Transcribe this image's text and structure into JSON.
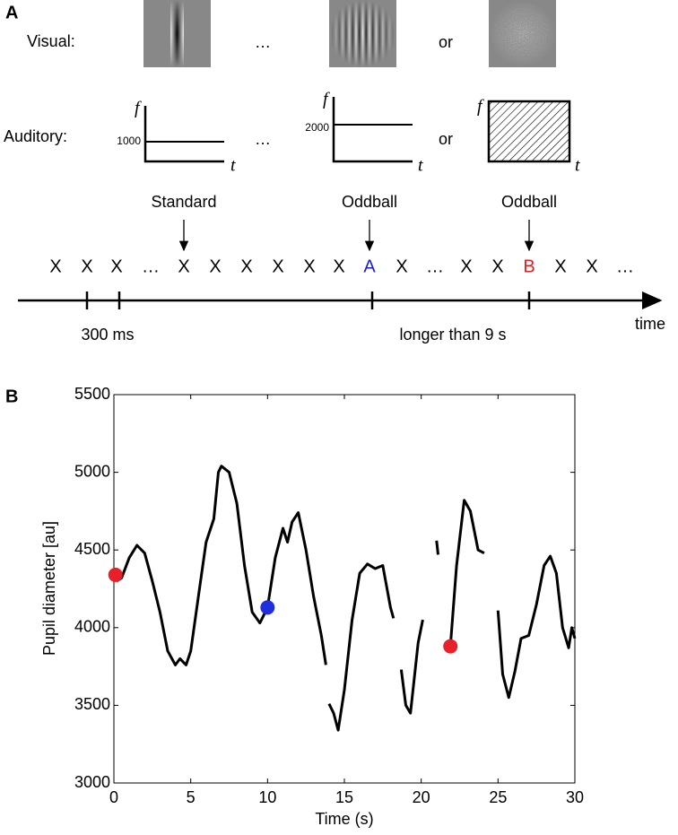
{
  "panel_a": {
    "label": "A",
    "visual_label": "Visual:",
    "visual_ellipsis": "…",
    "visual_or": "or",
    "auditory_label": "Auditory:",
    "plot1": {
      "f": "f",
      "level": "1000",
      "t": "t"
    },
    "auditory_ellipsis": "…",
    "plot2": {
      "f": "f",
      "level": "2000",
      "t": "t"
    },
    "auditory_or": "or",
    "plot3": {
      "f": "f",
      "t": "t"
    },
    "arrow_labels": [
      "Standard",
      "Oddball",
      "Oddball"
    ],
    "sequence": [
      {
        "text": "X",
        "color": "#000000"
      },
      {
        "text": "X",
        "color": "#000000"
      },
      {
        "text": "X",
        "color": "#000000"
      },
      {
        "text": "…",
        "color": "#000000"
      },
      {
        "text": "X",
        "color": "#000000"
      },
      {
        "text": "X",
        "color": "#000000"
      },
      {
        "text": "X",
        "color": "#000000"
      },
      {
        "text": "X",
        "color": "#000000"
      },
      {
        "text": "X",
        "color": "#000000"
      },
      {
        "text": "X",
        "color": "#000000"
      },
      {
        "text": "A",
        "color": "#1f1fbf"
      },
      {
        "text": "X",
        "color": "#000000"
      },
      {
        "text": "…",
        "color": "#000000"
      },
      {
        "text": "X",
        "color": "#000000"
      },
      {
        "text": "X",
        "color": "#000000"
      },
      {
        "text": "B",
        "color": "#e02020"
      },
      {
        "text": "X",
        "color": "#000000"
      },
      {
        "text": "X",
        "color": "#000000"
      },
      {
        "text": "…",
        "color": "#000000"
      }
    ],
    "interval_label": "300 ms",
    "gap_label": "longer than 9 s",
    "time_label": "time"
  },
  "chart_data": {
    "type": "line",
    "panel_label": "B",
    "x_label": "Time (s)",
    "y_label": "Pupil diameter [au]",
    "xlim": [
      0,
      30
    ],
    "ylim": [
      3000,
      5500
    ],
    "xticks": [
      0,
      5,
      10,
      15,
      20,
      25,
      30
    ],
    "yticks": [
      3000,
      3500,
      4000,
      4500,
      5000,
      5500
    ],
    "series": [
      {
        "color": "#000000",
        "x": [
          0.2,
          0.5,
          1.0,
          1.5,
          2.0,
          2.5,
          3.0,
          3.5,
          4.0,
          4.3,
          4.7,
          5.0,
          5.5,
          6.0,
          6.5,
          6.8,
          7.0,
          7.5,
          8.0,
          8.5,
          9.0,
          9.5,
          10.0,
          10.5,
          11.0,
          11.3,
          11.6,
          12.0,
          12.5,
          13.0,
          13.5,
          13.8,
          13.9,
          14.0,
          14.3,
          14.6,
          15.0,
          15.5,
          16.0,
          16.5,
          17.0,
          17.5,
          18.0,
          18.2,
          18.4,
          18.7,
          19.0,
          19.3,
          19.8,
          20.1,
          20.5,
          21.0,
          21.1,
          21.5,
          21.9,
          22.3,
          22.8,
          23.2,
          23.7,
          24.1,
          24.5,
          25.0,
          25.3,
          25.7,
          26.1,
          26.5,
          27.0,
          27.5,
          28.0,
          28.4,
          28.8,
          29.2,
          29.6,
          29.8,
          30.0
        ],
        "values": [
          4300,
          4320,
          4450,
          4530,
          4480,
          4300,
          4100,
          3850,
          3760,
          3800,
          3760,
          3850,
          4200,
          4550,
          4700,
          5000,
          5040,
          5000,
          4800,
          4400,
          4100,
          4030,
          4130,
          4450,
          4640,
          4550,
          4680,
          4740,
          4500,
          4200,
          3950,
          3760,
          null,
          3510,
          3450,
          3340,
          3600,
          4050,
          4350,
          4410,
          4380,
          4400,
          4130,
          4060,
          null,
          3730,
          3500,
          3450,
          3900,
          4050,
          null,
          4560,
          4470,
          null,
          3880,
          4400,
          4820,
          4750,
          4500,
          4480,
          null,
          4110,
          3700,
          3550,
          3720,
          3930,
          3950,
          4150,
          4400,
          4460,
          4350,
          4000,
          3870,
          4000,
          3930
        ]
      }
    ],
    "points": [
      {
        "x": 0.1,
        "y": 4340,
        "color": "#e8202a"
      },
      {
        "x": 10.0,
        "y": 4130,
        "color": "#1f2fe0"
      },
      {
        "x": 21.9,
        "y": 3880,
        "color": "#e8202a"
      }
    ]
  }
}
